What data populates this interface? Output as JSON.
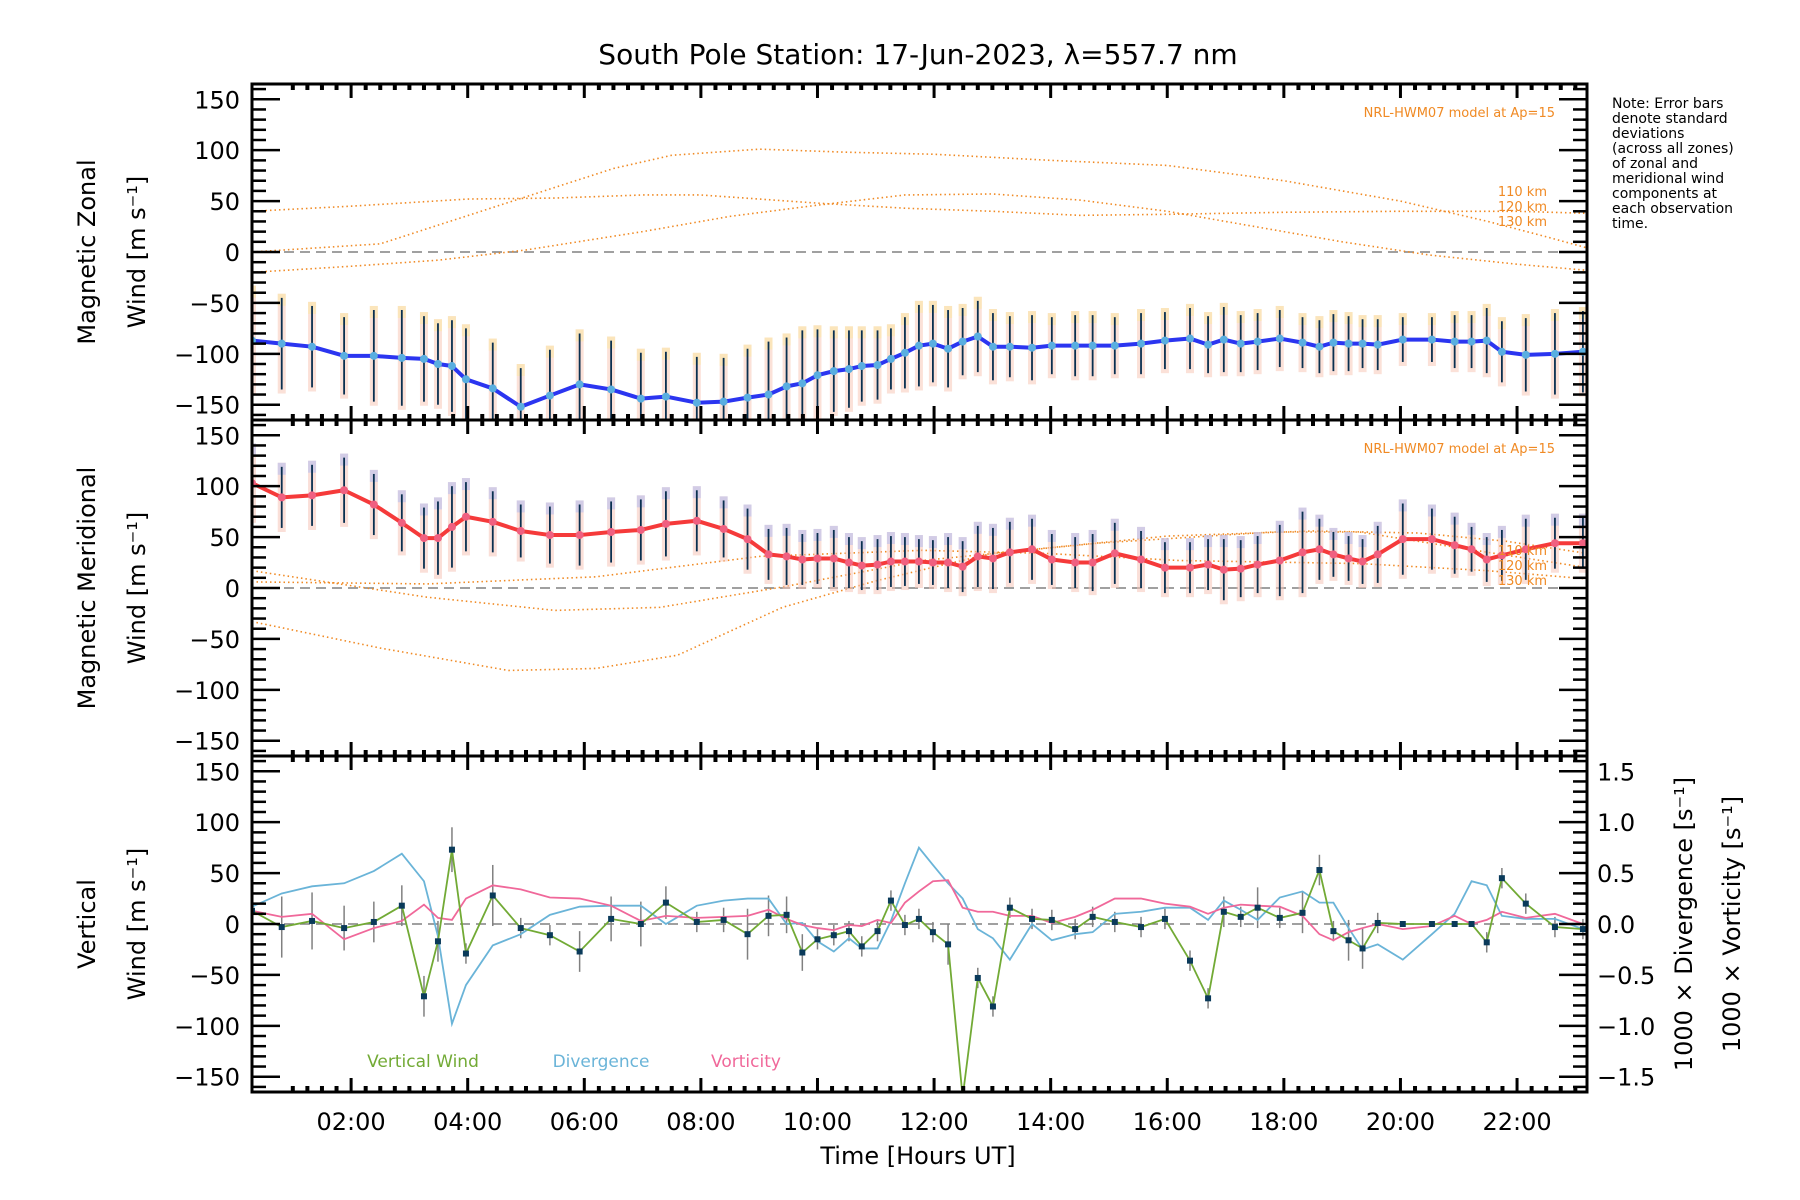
{
  "chart_data": {
    "type": "line",
    "title": "South Pole Station: 17-Jun-2023, λ=557.7 nm",
    "xlabel": "Time [Hours UT]",
    "xlim_hours": [
      0.3,
      23.2
    ],
    "x_ticks": [
      "02:00",
      "04:00",
      "06:00",
      "08:00",
      "10:00",
      "12:00",
      "14:00",
      "16:00",
      "18:00",
      "20:00",
      "22:00"
    ],
    "x_tick_hours": [
      2,
      4,
      6,
      8,
      10,
      12,
      14,
      16,
      18,
      20,
      22
    ],
    "note": [
      "Note: Error bars",
      "denote standard",
      "deviations",
      "(across all zones)",
      "of zonal and",
      "meridional wind",
      "components at",
      "each observation",
      "time."
    ],
    "times": [
      0.3,
      0.81,
      1.33,
      1.88,
      2.39,
      2.87,
      3.25,
      3.49,
      3.73,
      3.97,
      4.43,
      4.91,
      5.41,
      5.92,
      6.46,
      6.97,
      7.4,
      7.93,
      8.39,
      8.8,
      9.16,
      9.47,
      9.74,
      10.0,
      10.28,
      10.54,
      10.76,
      11.03,
      11.26,
      11.5,
      11.74,
      11.98,
      12.24,
      12.49,
      12.75,
      13.01,
      13.3,
      13.68,
      14.02,
      14.42,
      14.72,
      15.1,
      15.55,
      15.96,
      16.39,
      16.7,
      16.97,
      17.26,
      17.55,
      17.93,
      18.32,
      18.61,
      18.85,
      19.11,
      19.35,
      19.61,
      20.04,
      20.54,
      20.93,
      21.22,
      21.48,
      21.74,
      22.15,
      22.65,
      23.13
    ],
    "panels": [
      {
        "id": "zonal",
        "ylabel_line1": "Magnetic Zonal",
        "ylabel_line2": "Wind [m s⁻¹]",
        "ylim": [
          -165,
          165
        ],
        "y_ticks": [
          150,
          100,
          50,
          0,
          -50,
          -100,
          -150
        ],
        "model_label": "NRL-HWM07 model at Ap=15",
        "series": {
          "name": "Zonal wind",
          "color": "#2b35f0",
          "values": [
            -87,
            -90,
            -93,
            -102,
            -102,
            -104,
            -105,
            -110,
            -112,
            -125,
            -134,
            -152,
            -141,
            -130,
            -135,
            -144,
            -142,
            -148,
            -147,
            -143,
            -140,
            -132,
            -129,
            -121,
            -117,
            -115,
            -112,
            -111,
            -105,
            -99,
            -92,
            -90,
            -95,
            -88,
            -83,
            -93,
            -93,
            -94,
            -92,
            -92,
            -92,
            -92,
            -90,
            -87,
            -85,
            -91,
            -86,
            -90,
            -88,
            -85,
            -89,
            -93,
            -89,
            -90,
            -90,
            -91,
            -86,
            -86,
            -88,
            -88,
            -87,
            -98,
            -101,
            -100,
            -98
          ],
          "errors": [
            50,
            45,
            40,
            38,
            45,
            47,
            42,
            40,
            45,
            50,
            45,
            38,
            45,
            50,
            48,
            45,
            44,
            45,
            43,
            48,
            52,
            48,
            52,
            45,
            40,
            38,
            35,
            34,
            30,
            35,
            40,
            38,
            38,
            33,
            35,
            33,
            30,
            32,
            28,
            30,
            30,
            28,
            30,
            28,
            30,
            28,
            32,
            28,
            28,
            28,
            25,
            26,
            28,
            27,
            24,
            25,
            22,
            22,
            26,
            26,
            32,
            30,
            36,
            40,
            40
          ]
        },
        "model": [
          {
            "name": "110 km",
            "hours": [
              0.3,
              2.5,
              4.5,
              6.5,
              7.5,
              9,
              10.5,
              12,
              14,
              16,
              18,
              20,
              21.5,
              22.5,
              23.2
            ],
            "values": [
              0,
              8,
              45,
              82,
              95,
              101,
              98,
              96,
              90,
              85,
              70,
              50,
              30,
              15,
              4
            ]
          },
          {
            "name": "120 km",
            "hours": [
              0.3,
              2,
              4,
              5.5,
              7,
              8,
              9,
              10,
              11.5,
              13,
              14.5,
              16,
              18,
              20,
              22,
              23.2
            ],
            "values": [
              40,
              45,
              52,
              53,
              56,
              56,
              52,
              48,
              43,
              40,
              36,
              37,
              39,
              40,
              40,
              38
            ]
          },
          {
            "name": "130 km",
            "hours": [
              0.3,
              2,
              3.5,
              5,
              7,
              8.5,
              10,
              11.5,
              13,
              14.5,
              16,
              17.5,
              19,
              20.5,
              22,
              23.2
            ],
            "values": [
              -20,
              -14,
              -8,
              2,
              20,
              35,
              46,
              56,
              57,
              51,
              40,
              25,
              10,
              -3,
              -12,
              -18
            ]
          }
        ]
      },
      {
        "id": "meridional",
        "ylabel_line1": "Magnetic Meridional",
        "ylabel_line2": "Wind [m s⁻¹]",
        "ylim": [
          -165,
          165
        ],
        "y_ticks": [
          150,
          100,
          50,
          0,
          -50,
          -100,
          -150
        ],
        "model_label": "NRL-HWM07 model at Ap=15",
        "series": {
          "name": "Meridional wind",
          "color": "#f53a3a",
          "values": [
            103,
            89,
            91,
            96,
            82,
            64,
            49,
            49,
            60,
            70,
            65,
            56,
            52,
            52,
            55,
            57,
            63,
            66,
            58,
            48,
            33,
            31,
            28,
            29,
            29,
            25,
            22,
            23,
            26,
            26,
            26,
            25,
            25,
            21,
            31,
            29,
            35,
            38,
            28,
            25,
            25,
            34,
            28,
            20,
            20,
            23,
            18,
            19,
            23,
            27,
            35,
            38,
            33,
            29,
            26,
            33,
            48,
            48,
            42,
            38,
            28,
            32,
            38,
            44,
            44
          ],
          "errors": [
            35,
            30,
            30,
            32,
            30,
            28,
            30,
            36,
            40,
            34,
            30,
            26,
            28,
            30,
            30,
            30,
            32,
            30,
            28,
            30,
            25,
            28,
            25,
            25,
            28,
            25,
            24,
            25,
            25,
            24,
            22,
            22,
            25,
            25,
            30,
            30,
            30,
            30,
            25,
            25,
            28,
            30,
            28,
            25,
            25,
            25,
            30,
            28,
            28,
            35,
            40,
            30,
            22,
            22,
            22,
            28,
            35,
            30,
            28,
            22,
            22,
            25,
            30,
            25,
            25
          ]
        },
        "model": [
          {
            "name": "110 km",
            "hours": [
              0.3,
              1.8,
              3.3,
              5.5,
              7.3,
              9.4,
              11.8,
              14.8,
              17.8,
              19.3,
              21.5,
              23.2
            ],
            "values": [
              17,
              4,
              -9,
              -22,
              -19,
              1,
              27,
              44,
              55,
              55,
              35,
              20
            ]
          },
          {
            "name": "120 km",
            "hours": [
              0.3,
              3.3,
              6.2,
              9,
              11.8,
              13.9,
              16.2,
              19.3,
              21.5,
              23.2
            ],
            "values": [
              6,
              4,
              11,
              31,
              37,
              34,
              27,
              24,
              17,
              9
            ]
          },
          {
            "name": "130 km",
            "hours": [
              0.3,
              2.5,
              4.7,
              6.2,
              7.6,
              9.4,
              11,
              13,
              16,
              18.5,
              20.3,
              21.8,
              23.2
            ],
            "values": [
              -33,
              -59,
              -81,
              -79,
              -66,
              -19,
              7,
              34,
              51,
              56,
              54,
              46,
              34
            ]
          }
        ],
        "model_level_labels": [
          "110 km",
          "120 km",
          "130 km"
        ]
      },
      {
        "id": "vertical",
        "ylabel_line1": "Vertical",
        "ylabel_line2": "Wind [m s⁻¹]",
        "ylim": [
          -165,
          165
        ],
        "y_ticks": [
          150,
          100,
          50,
          0,
          -50,
          -100,
          -150
        ],
        "right_ylim": [
          -1.65,
          1.65
        ],
        "right_y_ticks": [
          "1.5",
          "1.0",
          "0.5",
          "0.0",
          "−0.5",
          "−1.0",
          "−1.5"
        ],
        "right_y_tick_values": [
          1.5,
          1.0,
          0.5,
          0.0,
          -0.5,
          -1.0,
          -1.5
        ],
        "right_label_divergence": "1000 × Divergence [s⁻¹]",
        "right_label_vorticity": "1000 × Vorticity [s⁻¹]",
        "legend": [
          "Vertical Wind",
          "Divergence",
          "Vorticity"
        ],
        "series": [
          {
            "name": "Vertical Wind",
            "color": "#72aa35",
            "values": [
              13,
              -3,
              3,
              -4,
              2,
              18,
              -71,
              -17,
              73,
              -29,
              28,
              -4,
              -11,
              -27,
              5,
              0,
              21,
              2,
              4,
              -10,
              8,
              9,
              -28,
              -15,
              -11,
              -7,
              -22,
              -7,
              23,
              -1,
              5,
              -8,
              -20,
              -170,
              -53,
              -81,
              16,
              5,
              4,
              -5,
              7,
              2,
              -3,
              5,
              -36,
              -73,
              12,
              7,
              16,
              6,
              11,
              53,
              -7,
              -16,
              -24,
              1,
              0,
              0,
              0,
              0,
              -18,
              45,
              20,
              -3,
              -5
            ],
            "errors": [
              0,
              30,
              28,
              22,
              20,
              20,
              20,
              20,
              22,
              10,
              30,
              10,
              10,
              20,
              22,
              22,
              16,
              10,
              12,
              25,
              20,
              18,
              18,
              10,
              10,
              10,
              10,
              10,
              10,
              10,
              10,
              10,
              20,
              0,
              10,
              10,
              10,
              10,
              10,
              10,
              10,
              10,
              10,
              10,
              10,
              10,
              15,
              10,
              20,
              10,
              20,
              15,
              10,
              20,
              20,
              10,
              0,
              0,
              0,
              0,
              10,
              10,
              10,
              10,
              10
            ]
          },
          {
            "name": "Divergence",
            "color": "#6ab4d8",
            "axis": "right",
            "values": [
              0.17,
              0.3,
              0.37,
              0.4,
              0.52,
              0.69,
              0.42,
              -0.12,
              -0.98,
              -0.6,
              -0.21,
              -0.1,
              0.09,
              0.17,
              0.18,
              0.18,
              0.0,
              0.18,
              0.23,
              0.25,
              0.25,
              0.0,
              0.01,
              -0.17,
              -0.27,
              -0.14,
              -0.24,
              -0.24,
              0.03,
              0.4,
              0.75,
              0.58,
              0.4,
              0.25,
              -0.05,
              -0.14,
              -0.35,
              0.0,
              -0.16,
              -0.1,
              -0.08,
              0.1,
              0.12,
              0.16,
              0.16,
              0.04,
              0.23,
              0.14,
              0.04,
              0.26,
              0.32,
              0.21,
              0.21,
              -0.04,
              -0.25,
              -0.2,
              -0.35,
              -0.1,
              0.1,
              0.42,
              0.38,
              0.08,
              0.05,
              0.05,
              -0.05
            ]
          },
          {
            "name": "Vorticity",
            "color": "#f0689a",
            "axis": "right",
            "values": [
              0.13,
              0.07,
              0.1,
              -0.15,
              -0.04,
              0.03,
              0.19,
              0.06,
              0.04,
              0.25,
              0.38,
              0.34,
              0.26,
              0.25,
              0.18,
              0.03,
              0.08,
              0.06,
              0.07,
              0.08,
              0.14,
              0.05,
              -0.01,
              -0.04,
              -0.06,
              -0.01,
              -0.02,
              0.04,
              0.01,
              0.21,
              0.32,
              0.42,
              0.43,
              0.16,
              0.12,
              0.12,
              0.08,
              0.08,
              0.01,
              0.07,
              0.14,
              0.25,
              0.25,
              0.2,
              0.17,
              0.1,
              0.16,
              0.19,
              0.18,
              0.17,
              0.08,
              -0.1,
              -0.16,
              -0.08,
              -0.04,
              0.0,
              -0.05,
              -0.02,
              0.08,
              0.0,
              0.04,
              0.12,
              0.06,
              0.1,
              0.0
            ]
          }
        ]
      }
    ]
  }
}
